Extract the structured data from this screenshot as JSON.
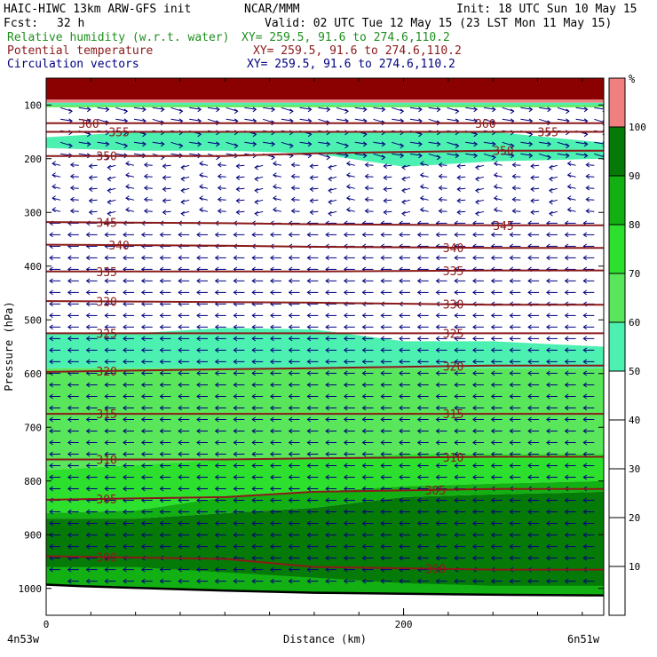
{
  "header": {
    "model": "HAIC-HIWC 13km ARW-GFS init",
    "org": "NCAR/MMM",
    "init": "Init: 18 UTC Sun 10 May 15",
    "fcst_label": "Fcst:",
    "fcst_value": "32 h",
    "valid": "Valid: 02 UTC Tue 12 May 15 (23 LST Mon 11 May 15)",
    "fields": [
      {
        "name": "Relative humidity (w.r.t. water)",
        "xy": "XY= 259.5, 91.6 to 274.6,110.2",
        "color": "#1f8f1f"
      },
      {
        "name": "Potential temperature",
        "xy": "XY= 259.5, 91.6 to 274.6,110.2",
        "color": "#8b1a1a"
      },
      {
        "name": "Circulation vectors",
        "xy": "XY= 259.5, 91.6 to 274.6,110.2",
        "color": "#000080"
      }
    ]
  },
  "chart_data": {
    "type": "heatmap",
    "xlabel": "Distance (km)",
    "ylabel": "Pressure (hPa)",
    "xlim": [
      0,
      312
    ],
    "ylim": [
      1050,
      50
    ],
    "x_ticks": [
      0,
      200
    ],
    "y_ticks": [
      100,
      200,
      300,
      400,
      500,
      600,
      700,
      800,
      900,
      1000
    ],
    "endpoint_labels": {
      "left": "4n53w",
      "right": "6n51w"
    },
    "colorbar": {
      "unit": "%",
      "ticks": [
        10,
        20,
        30,
        40,
        50,
        60,
        70,
        80,
        90,
        100
      ],
      "levels": [
        {
          "from": 0,
          "to": 50,
          "color": "#ffffff"
        },
        {
          "from": 50,
          "to": 60,
          "color": "#4cf0b0"
        },
        {
          "from": 60,
          "to": 70,
          "color": "#5ae65a"
        },
        {
          "from": 70,
          "to": 80,
          "color": "#2ee02e"
        },
        {
          "from": 80,
          "to": 90,
          "color": "#12b012"
        },
        {
          "from": 90,
          "to": 100,
          "color": "#067a06"
        },
        {
          "from": 100,
          "to": 110,
          "color": "#f08080"
        }
      ]
    },
    "rh_bands": [
      {
        "color": "#8b0000",
        "top": [
          50,
          50
        ],
        "bot": [
          90,
          90
        ]
      },
      {
        "color": "#f08080",
        "top": [
          90,
          90
        ],
        "bot": [
          96,
          96
        ]
      },
      {
        "color": "#4cf0b0",
        "top": [
          96,
          96
        ],
        "bot": [
          100,
          100
        ]
      },
      {
        "color": "#5ae65a",
        "top": [
          100,
          100
        ],
        "bot": [
          104,
          104
        ]
      },
      {
        "color": "#4cf0b0",
        "top": [
          160,
          150,
          150,
          150,
          150,
          150,
          170
        ],
        "bot": [
          180,
          185,
          185,
          190,
          215,
          205,
          200
        ]
      },
      {
        "color": "#4cf0b0",
        "top": [
          525,
          525,
          515,
          518,
          540,
          540,
          550
        ],
        "bot": [
          590,
          590,
          590,
          590,
          590,
          590,
          590
        ]
      },
      {
        "color": "#5ae65a",
        "top": [
          590,
          590,
          590,
          590,
          590,
          590,
          590
        ],
        "bot": [
          780,
          770,
          760,
          760,
          750,
          750,
          750
        ]
      },
      {
        "color": "#2ee02e",
        "top": [
          780,
          770,
          760,
          760,
          750,
          750,
          750
        ],
        "bot": [
          860,
          855,
          830,
          820,
          810,
          805,
          800
        ]
      },
      {
        "color": "#12b012",
        "top": [
          860,
          855,
          830,
          820,
          810,
          805,
          800
        ],
        "bot": [
          870,
          870,
          860,
          850,
          830,
          825,
          820
        ]
      },
      {
        "color": "#067a06",
        "top": [
          870,
          870,
          860,
          850,
          830,
          825,
          820
        ],
        "bot": [
          1005,
          1010,
          1015,
          1015,
          1015,
          1015,
          1015
        ]
      },
      {
        "color": "#12b012",
        "top": [
          960,
          960,
          970,
          980,
          990,
          995,
          995
        ],
        "bot": [
          1005,
          1010,
          1015,
          1015,
          1015,
          1015,
          1015
        ]
      }
    ],
    "band_x": [
      0,
      50,
      100,
      150,
      200,
      250,
      312
    ],
    "theta_lines": [
      {
        "value": "360",
        "p": [
          134,
          134,
          134,
          134,
          134
        ],
        "label_x": [
          18,
          240
        ]
      },
      {
        "value": "355",
        "p": [
          150,
          150,
          150,
          150,
          150
        ],
        "label_x": [
          35,
          275
        ]
      },
      {
        "value": "350",
        "p": [
          195,
          195,
          190,
          185,
          185
        ],
        "label_x": [
          28,
          250
        ]
      },
      {
        "value": "345",
        "p": [
          318,
          320,
          322,
          324,
          324
        ],
        "label_x": [
          28,
          250
        ]
      },
      {
        "value": "340",
        "p": [
          360,
          362,
          364,
          366,
          366
        ],
        "label_x": [
          35,
          222
        ]
      },
      {
        "value": "335",
        "p": [
          410,
          410,
          410,
          408,
          408
        ],
        "label_x": [
          28,
          222
        ]
      },
      {
        "value": "330",
        "p": [
          465,
          467,
          468,
          472,
          472
        ],
        "label_x": [
          28,
          222
        ]
      },
      {
        "value": "325",
        "p": [
          525,
          525,
          525,
          525,
          525
        ],
        "label_x": [
          28,
          222
        ]
      },
      {
        "value": "320",
        "p": [
          597,
          592,
          590,
          585,
          585
        ],
        "label_x": [
          28,
          222
        ]
      },
      {
        "value": "315",
        "p": [
          675,
          675,
          675,
          675,
          675
        ],
        "label_x": [
          28,
          222
        ]
      },
      {
        "value": "310",
        "p": [
          760,
          760,
          758,
          755,
          755
        ],
        "label_x": [
          28,
          222
        ]
      },
      {
        "value": "305",
        "p": [
          835,
          830,
          820,
          815,
          815
        ],
        "label_x": [
          28,
          212
        ]
      },
      {
        "value": "300",
        "p": [
          940,
          945,
          960,
          965,
          965
        ],
        "label_x": [
          28,
          212
        ]
      }
    ],
    "theta_x": [
      0,
      100,
      150,
      250,
      312
    ],
    "terrain": {
      "x": [
        0,
        20,
        60,
        100,
        150,
        200,
        260,
        312
      ],
      "p": [
        993,
        996,
        1000,
        1004,
        1008,
        1010,
        1012,
        1013
      ]
    }
  }
}
